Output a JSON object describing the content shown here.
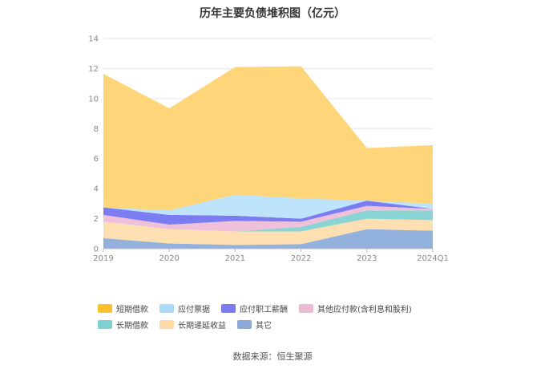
{
  "chart_data": {
    "type": "area",
    "stacked": true,
    "title": "历年主要负债堆积图（亿元）",
    "categories": [
      "2019",
      "2020",
      "2021",
      "2022",
      "2023",
      "2024Q1"
    ],
    "ylim": [
      0,
      14
    ],
    "yticks": [
      0,
      2,
      4,
      6,
      8,
      10,
      12,
      14
    ],
    "grid": true,
    "legend_position": "bottom",
    "series": [
      {
        "name": "其它",
        "color": "#92b1dc",
        "values": [
          0.7,
          0.35,
          0.25,
          0.3,
          1.3,
          1.2
        ]
      },
      {
        "name": "长期递延收益",
        "color": "#fddfb2",
        "values": [
          1.1,
          0.95,
          0.9,
          0.85,
          0.7,
          0.7
        ]
      },
      {
        "name": "长期借款",
        "color": "#8bd4d4",
        "values": [
          0.0,
          0.0,
          0.0,
          0.3,
          0.55,
          0.65
        ]
      },
      {
        "name": "其他应付款(含利息和股利)",
        "color": "#eec0d9",
        "values": [
          0.45,
          0.3,
          0.7,
          0.35,
          0.3,
          0.1
        ]
      },
      {
        "name": "应付职工薪酬",
        "color": "#7c7cf2",
        "values": [
          0.5,
          0.65,
          0.35,
          0.2,
          0.35,
          0.0
        ]
      },
      {
        "name": "应付票据",
        "color": "#bde4fb",
        "values": [
          0.0,
          0.3,
          1.4,
          1.35,
          0.0,
          0.35
        ]
      },
      {
        "name": "短期借款",
        "color": "#ffd57a",
        "values": [
          8.9,
          6.8,
          8.5,
          8.8,
          3.5,
          3.9
        ]
      }
    ]
  },
  "legend": [
    {
      "label": "短期借款",
      "color": "#fbc02d"
    },
    {
      "label": "应付票据",
      "color": "#a9dbf9"
    },
    {
      "label": "应付职工薪酬",
      "color": "#7b7bf0"
    },
    {
      "label": "其他应付款(含利息和股利)",
      "color": "#ebbbd6"
    },
    {
      "label": "长期借款",
      "color": "#7fd1d1"
    },
    {
      "label": "长期递延收益",
      "color": "#fdd9a6"
    },
    {
      "label": "其它",
      "color": "#8aaad8"
    }
  ],
  "source": "数据来源：恒生聚源"
}
